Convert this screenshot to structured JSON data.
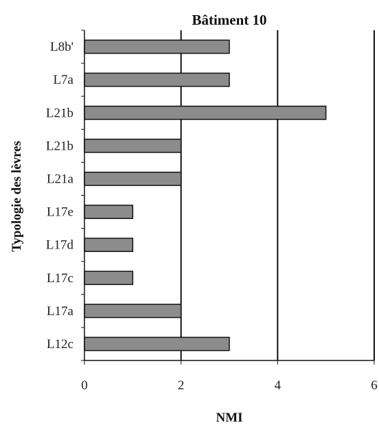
{
  "chart_data": {
    "type": "bar",
    "orientation": "horizontal",
    "title": "Bâtiment 10",
    "xlabel": "NMI",
    "ylabel": "Typologie des lèvres",
    "categories": [
      "L8b'",
      "L7a",
      "L21b",
      "L21b",
      "L21a",
      "L17e",
      "L17d",
      "L17c",
      "L17a",
      "L12c"
    ],
    "values": [
      3,
      3,
      5,
      2,
      2,
      1,
      1,
      1,
      2,
      3
    ],
    "xlim": [
      0,
      6
    ],
    "xticks": [
      "0",
      "2",
      "4",
      "6"
    ],
    "grid": "vertical major gridlines",
    "legend": "none",
    "bar_color": "#8c8c8c",
    "bar_edge_color": "#111111",
    "axis_color": "#111111"
  }
}
